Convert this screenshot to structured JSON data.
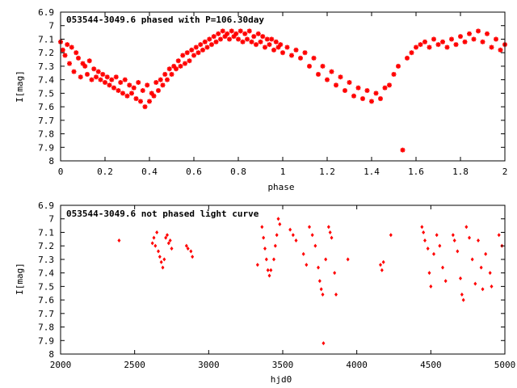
{
  "chart_data": [
    {
      "type": "scatter",
      "title": "053544-3049.6 phased with P=106.30day",
      "xlabel": "phase",
      "ylabel": "I[mag]",
      "xlim": [
        0,
        2
      ],
      "ylim": [
        6.9,
        8.0
      ],
      "y_inverted": true,
      "marker_color": "#ff0000",
      "marker": "asterisk",
      "x_ticks": [
        0,
        0.2,
        0.4,
        0.6,
        0.8,
        1,
        1.2,
        1.4,
        1.6,
        1.8,
        2
      ],
      "x_tick_labels": [
        "0",
        "0.2",
        "0.4",
        "0.6",
        "0.8",
        "1",
        "1.2",
        "1.4",
        "1.6",
        "1.8",
        "2"
      ],
      "y_ticks": [
        6.9,
        7.0,
        7.1,
        7.2,
        7.3,
        7.4,
        7.5,
        7.6,
        7.7,
        7.8,
        7.9,
        8.0
      ],
      "y_tick_labels": [
        "6.9",
        "7",
        "7.1",
        "7.2",
        "7.3",
        "7.4",
        "7.5",
        "7.6",
        "7.7",
        "7.8",
        "7.9",
        "8"
      ],
      "points": [
        [
          0.0,
          7.12
        ],
        [
          0.01,
          7.18
        ],
        [
          0.02,
          7.22
        ],
        [
          0.03,
          7.14
        ],
        [
          0.04,
          7.28
        ],
        [
          0.05,
          7.16
        ],
        [
          0.06,
          7.34
        ],
        [
          0.07,
          7.2
        ],
        [
          0.08,
          7.24
        ],
        [
          0.09,
          7.38
        ],
        [
          0.1,
          7.28
        ],
        [
          0.11,
          7.3
        ],
        [
          0.12,
          7.36
        ],
        [
          0.13,
          7.26
        ],
        [
          0.14,
          7.4
        ],
        [
          0.15,
          7.32
        ],
        [
          0.16,
          7.38
        ],
        [
          0.17,
          7.34
        ],
        [
          0.18,
          7.4
        ],
        [
          0.19,
          7.36
        ],
        [
          0.2,
          7.42
        ],
        [
          0.21,
          7.38
        ],
        [
          0.22,
          7.44
        ],
        [
          0.23,
          7.4
        ],
        [
          0.24,
          7.46
        ],
        [
          0.25,
          7.38
        ],
        [
          0.26,
          7.48
        ],
        [
          0.27,
          7.42
        ],
        [
          0.28,
          7.5
        ],
        [
          0.29,
          7.4
        ],
        [
          0.3,
          7.52
        ],
        [
          0.31,
          7.44
        ],
        [
          0.32,
          7.5
        ],
        [
          0.33,
          7.46
        ],
        [
          0.34,
          7.54
        ],
        [
          0.35,
          7.42
        ],
        [
          0.36,
          7.56
        ],
        [
          0.37,
          7.48
        ],
        [
          0.38,
          7.6
        ],
        [
          0.39,
          7.44
        ],
        [
          0.4,
          7.56
        ],
        [
          0.41,
          7.5
        ],
        [
          0.42,
          7.52
        ],
        [
          0.43,
          7.42
        ],
        [
          0.44,
          7.48
        ],
        [
          0.45,
          7.4
        ],
        [
          0.46,
          7.44
        ],
        [
          0.47,
          7.36
        ],
        [
          0.48,
          7.4
        ],
        [
          0.49,
          7.32
        ],
        [
          0.5,
          7.36
        ],
        [
          0.51,
          7.3
        ],
        [
          0.52,
          7.32
        ],
        [
          0.53,
          7.26
        ],
        [
          0.54,
          7.3
        ],
        [
          0.55,
          7.22
        ],
        [
          0.56,
          7.28
        ],
        [
          0.57,
          7.2
        ],
        [
          0.58,
          7.26
        ],
        [
          0.59,
          7.18
        ],
        [
          0.6,
          7.22
        ],
        [
          0.61,
          7.16
        ],
        [
          0.62,
          7.2
        ],
        [
          0.63,
          7.14
        ],
        [
          0.64,
          7.18
        ],
        [
          0.65,
          7.12
        ],
        [
          0.66,
          7.16
        ],
        [
          0.67,
          7.1
        ],
        [
          0.68,
          7.14
        ],
        [
          0.69,
          7.08
        ],
        [
          0.7,
          7.12
        ],
        [
          0.71,
          7.06
        ],
        [
          0.72,
          7.1
        ],
        [
          0.73,
          7.04
        ],
        [
          0.74,
          7.08
        ],
        [
          0.75,
          7.06
        ],
        [
          0.76,
          7.1
        ],
        [
          0.77,
          7.04
        ],
        [
          0.78,
          7.08
        ],
        [
          0.79,
          7.06
        ],
        [
          0.8,
          7.1
        ],
        [
          0.81,
          7.04
        ],
        [
          0.82,
          7.12
        ],
        [
          0.83,
          7.06
        ],
        [
          0.84,
          7.1
        ],
        [
          0.85,
          7.04
        ],
        [
          0.86,
          7.12
        ],
        [
          0.87,
          7.08
        ],
        [
          0.88,
          7.14
        ],
        [
          0.89,
          7.06
        ],
        [
          0.9,
          7.12
        ],
        [
          0.91,
          7.08
        ],
        [
          0.92,
          7.16
        ],
        [
          0.93,
          7.1
        ],
        [
          0.94,
          7.14
        ],
        [
          0.95,
          7.1
        ],
        [
          0.96,
          7.18
        ],
        [
          0.97,
          7.12
        ],
        [
          0.98,
          7.16
        ],
        [
          0.99,
          7.14
        ],
        [
          1.0,
          7.2
        ],
        [
          1.02,
          7.16
        ],
        [
          1.04,
          7.22
        ],
        [
          1.06,
          7.18
        ],
        [
          1.08,
          7.24
        ],
        [
          1.1,
          7.2
        ],
        [
          1.12,
          7.3
        ],
        [
          1.14,
          7.24
        ],
        [
          1.16,
          7.36
        ],
        [
          1.18,
          7.3
        ],
        [
          1.2,
          7.4
        ],
        [
          1.22,
          7.34
        ],
        [
          1.24,
          7.44
        ],
        [
          1.26,
          7.38
        ],
        [
          1.28,
          7.48
        ],
        [
          1.3,
          7.42
        ],
        [
          1.32,
          7.52
        ],
        [
          1.34,
          7.46
        ],
        [
          1.36,
          7.54
        ],
        [
          1.38,
          7.48
        ],
        [
          1.4,
          7.56
        ],
        [
          1.42,
          7.5
        ],
        [
          1.44,
          7.54
        ],
        [
          1.46,
          7.46
        ],
        [
          1.48,
          7.44
        ],
        [
          1.5,
          7.36
        ],
        [
          1.52,
          7.3
        ],
        [
          1.54,
          7.92
        ],
        [
          1.56,
          7.24
        ],
        [
          1.58,
          7.2
        ],
        [
          1.6,
          7.16
        ],
        [
          1.62,
          7.14
        ],
        [
          1.64,
          7.12
        ],
        [
          1.66,
          7.16
        ],
        [
          1.68,
          7.1
        ],
        [
          1.7,
          7.14
        ],
        [
          1.72,
          7.12
        ],
        [
          1.74,
          7.16
        ],
        [
          1.76,
          7.1
        ],
        [
          1.78,
          7.14
        ],
        [
          1.8,
          7.08
        ],
        [
          1.82,
          7.12
        ],
        [
          1.84,
          7.06
        ],
        [
          1.86,
          7.1
        ],
        [
          1.88,
          7.04
        ],
        [
          1.9,
          7.12
        ],
        [
          1.92,
          7.06
        ],
        [
          1.94,
          7.16
        ],
        [
          1.96,
          7.1
        ],
        [
          1.98,
          7.18
        ],
        [
          2.0,
          7.14
        ]
      ]
    },
    {
      "type": "scatter",
      "title": "053544-3049.6 not phased light curve",
      "xlabel": "hjd0",
      "ylabel": "I[mag]",
      "xlim": [
        2000,
        5000
      ],
      "ylim": [
        6.9,
        8.0
      ],
      "y_inverted": true,
      "marker_color": "#ff0000",
      "marker": "diamond",
      "x_ticks": [
        2000,
        2500,
        3000,
        3500,
        4000,
        4500,
        5000
      ],
      "x_tick_labels": [
        "2000",
        "2500",
        "3000",
        "3500",
        "4000",
        "4500",
        "5000"
      ],
      "y_ticks": [
        6.9,
        7.0,
        7.1,
        7.2,
        7.3,
        7.4,
        7.5,
        7.6,
        7.7,
        7.8,
        7.9,
        8.0
      ],
      "y_tick_labels": [
        "6.9",
        "7",
        "7.1",
        "7.2",
        "7.3",
        "7.4",
        "7.5",
        "7.6",
        "7.7",
        "7.8",
        "7.9",
        "8"
      ],
      "points": [
        [
          2395,
          7.16
        ],
        [
          2620,
          7.18
        ],
        [
          2630,
          7.14
        ],
        [
          2640,
          7.2
        ],
        [
          2650,
          7.1
        ],
        [
          2660,
          7.24
        ],
        [
          2670,
          7.28
        ],
        [
          2680,
          7.32
        ],
        [
          2690,
          7.36
        ],
        [
          2700,
          7.3
        ],
        [
          2710,
          7.14
        ],
        [
          2720,
          7.12
        ],
        [
          2730,
          7.18
        ],
        [
          2740,
          7.16
        ],
        [
          2750,
          7.22
        ],
        [
          2850,
          7.2
        ],
        [
          2860,
          7.22
        ],
        [
          2880,
          7.24
        ],
        [
          2890,
          7.28
        ],
        [
          3330,
          7.34
        ],
        [
          3360,
          7.06
        ],
        [
          3370,
          7.14
        ],
        [
          3380,
          7.22
        ],
        [
          3390,
          7.3
        ],
        [
          3400,
          7.38
        ],
        [
          3410,
          7.42
        ],
        [
          3420,
          7.38
        ],
        [
          3440,
          7.3
        ],
        [
          3450,
          7.2
        ],
        [
          3460,
          7.12
        ],
        [
          3470,
          7.0
        ],
        [
          3480,
          7.04
        ],
        [
          3550,
          7.08
        ],
        [
          3570,
          7.12
        ],
        [
          3590,
          7.16
        ],
        [
          3640,
          7.26
        ],
        [
          3660,
          7.34
        ],
        [
          3680,
          7.06
        ],
        [
          3700,
          7.12
        ],
        [
          3720,
          7.2
        ],
        [
          3740,
          7.36
        ],
        [
          3750,
          7.46
        ],
        [
          3760,
          7.52
        ],
        [
          3770,
          7.56
        ],
        [
          3775,
          7.92
        ],
        [
          3790,
          7.3
        ],
        [
          3810,
          7.06
        ],
        [
          3820,
          7.1
        ],
        [
          3830,
          7.14
        ],
        [
          3850,
          7.4
        ],
        [
          3860,
          7.56
        ],
        [
          3940,
          7.3
        ],
        [
          4160,
          7.34
        ],
        [
          4170,
          7.38
        ],
        [
          4180,
          7.32
        ],
        [
          4230,
          7.12
        ],
        [
          4440,
          7.06
        ],
        [
          4450,
          7.1
        ],
        [
          4460,
          7.16
        ],
        [
          4480,
          7.22
        ],
        [
          4490,
          7.4
        ],
        [
          4500,
          7.5
        ],
        [
          4520,
          7.26
        ],
        [
          4540,
          7.12
        ],
        [
          4560,
          7.2
        ],
        [
          4580,
          7.36
        ],
        [
          4600,
          7.46
        ],
        [
          4650,
          7.12
        ],
        [
          4660,
          7.16
        ],
        [
          4680,
          7.24
        ],
        [
          4700,
          7.44
        ],
        [
          4710,
          7.56
        ],
        [
          4720,
          7.6
        ],
        [
          4740,
          7.06
        ],
        [
          4760,
          7.14
        ],
        [
          4780,
          7.3
        ],
        [
          4800,
          7.48
        ],
        [
          4820,
          7.16
        ],
        [
          4840,
          7.36
        ],
        [
          4850,
          7.52
        ],
        [
          4870,
          7.26
        ],
        [
          4900,
          7.4
        ],
        [
          4910,
          7.5
        ],
        [
          4960,
          7.12
        ],
        [
          4980,
          7.2
        ]
      ]
    }
  ]
}
